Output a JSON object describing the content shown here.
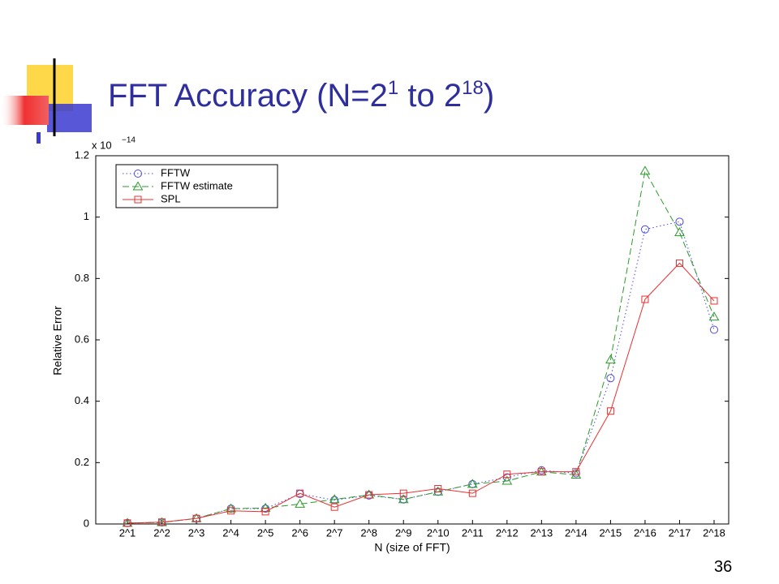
{
  "slide": {
    "title_parts": [
      "FFT Accuracy (N=2",
      "1",
      " to 2",
      "18",
      ")"
    ],
    "page_number": "36"
  },
  "chart_data": {
    "type": "line",
    "y_label": "Relative Error",
    "x_label": "N (size of FFT)",
    "y_multiplier": "x 10",
    "y_multiplier_exponent": "−14",
    "categories": [
      "2^1",
      "2^2",
      "2^3",
      "2^4",
      "2^5",
      "2^6",
      "2^7",
      "2^8",
      "2^9",
      "2^10",
      "2^11",
      "2^12",
      "2^13",
      "2^14",
      "2^15",
      "2^16",
      "2^17",
      "2^18"
    ],
    "series": [
      {
        "name": "FFTW",
        "color": "#4a4ae0",
        "linestyle": "dotted",
        "marker": "circle",
        "values": [
          0.003,
          0.005,
          0.018,
          0.05,
          0.05,
          0.098,
          0.078,
          0.093,
          0.08,
          0.105,
          0.13,
          0.152,
          0.175,
          0.165,
          0.475,
          0.96,
          0.985,
          0.633
        ]
      },
      {
        "name": "FFTW estimate",
        "color": "#2a9a2a",
        "linestyle": "dashed",
        "marker": "triangle",
        "values": [
          0.003,
          0.005,
          0.018,
          0.05,
          0.052,
          0.065,
          0.08,
          0.095,
          0.08,
          0.105,
          0.13,
          0.14,
          0.17,
          0.16,
          0.535,
          1.15,
          0.95,
          0.675
        ]
      },
      {
        "name": "SPL",
        "color": "#e83030",
        "linestyle": "solid",
        "marker": "square",
        "values": [
          0.003,
          0.006,
          0.018,
          0.043,
          0.04,
          0.1,
          0.055,
          0.095,
          0.1,
          0.115,
          0.1,
          0.162,
          0.17,
          0.17,
          0.368,
          0.732,
          0.85,
          0.727
        ]
      }
    ],
    "ylim": [
      0,
      1.2
    ],
    "yticks": [
      0,
      0.2,
      0.4,
      0.6,
      0.8,
      1,
      1.2
    ],
    "legend": "upper left"
  }
}
